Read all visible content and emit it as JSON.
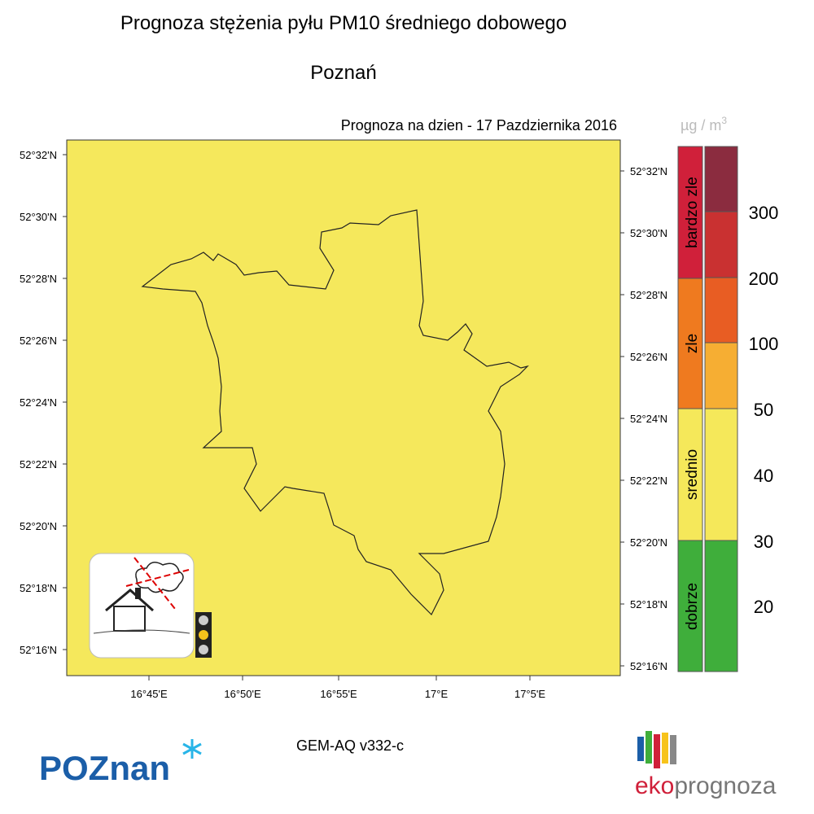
{
  "header": {
    "title": "Prognoza stężenia pyłu PM10 średniego dobowego",
    "city": "Poznań",
    "date": "Prognoza na dzien -  17 Pazdziernika 2016"
  },
  "map": {
    "lat_labels_left": [
      "52°32'N",
      "52°30'N",
      "52°28'N",
      "52°26'N",
      "52°24'N",
      "52°22'N",
      "52°20'N",
      "52°18'N",
      "52°16'N"
    ],
    "lat_labels_right": [
      "52°32'N",
      "52°30'N",
      "52°28'N",
      "52°26'N",
      "52°24'N",
      "52°22'N",
      "52°20'N",
      "52°18'N",
      "52°16'N"
    ],
    "lon_labels": [
      "16°45'E",
      "16°50'E",
      "16°55'E",
      "17°E",
      "17°5'E"
    ]
  },
  "legend": {
    "unit": {
      "base": "µg / m",
      "exponent": "3"
    },
    "categories": [
      "bardzo zle",
      "zle",
      "srednio",
      "dobrze"
    ],
    "levels": [
      "300",
      "200",
      "100",
      "50",
      "40",
      "30",
      "20"
    ]
  },
  "footer": {
    "model": "GEM-AQ v332-c",
    "logo_left": "POZnan",
    "logo_right_prefix": "eko",
    "logo_right_suffix": "prognoza"
  }
}
